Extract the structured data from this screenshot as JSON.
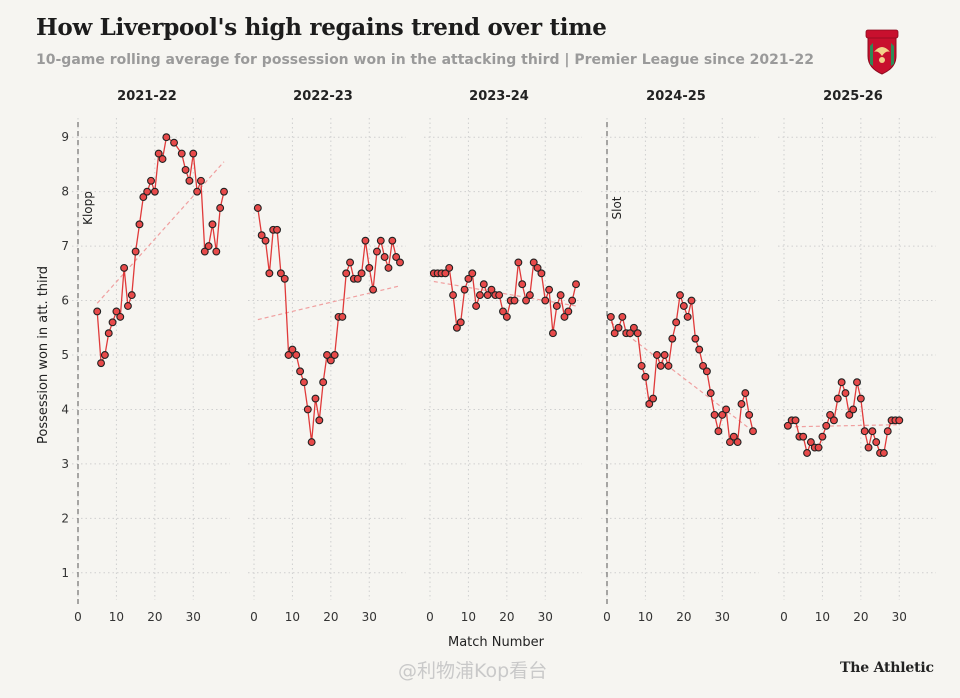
{
  "header": {
    "title": "How Liverpool's high regains trend over time",
    "subtitle": "10-game rolling average for possession won in the attacking third | Premier League since 2021-22"
  },
  "footer": {
    "brand": "The Athletic",
    "watermark": "@利物浦Kop看台"
  },
  "crest": {
    "text": "LIVERPOOL",
    "color": "#c8102e"
  },
  "colors": {
    "line": "#e03a3a",
    "marker_fill": "#e84a4a",
    "marker_edge": "#222222",
    "trend": "#f0a0a0",
    "grid": "#cfcfcf",
    "background": "#f6f5f1"
  },
  "chart_data": {
    "type": "line",
    "facets": [
      "2021-22",
      "2022-23",
      "2023-24",
      "2024-25",
      "2025-26"
    ],
    "xlabel": "Match Number",
    "ylabel": "Possession won in att. third",
    "ylim": [
      0.5,
      9.5
    ],
    "yticks": [
      1,
      2,
      3,
      4,
      5,
      6,
      7,
      8,
      9
    ],
    "xlim": [
      0,
      38
    ],
    "xticks": [
      0,
      10,
      20,
      30
    ],
    "grid": true,
    "series": [
      {
        "name": "2021-22",
        "annotation": "Klopp",
        "x": [
          5,
          6,
          7,
          8,
          9,
          10,
          11,
          12,
          13,
          14,
          15,
          16,
          17,
          18,
          19,
          20,
          21,
          22,
          23,
          25,
          27,
          28,
          29,
          30,
          31,
          32,
          33,
          34,
          35,
          36,
          37,
          38
        ],
        "y": [
          5.8,
          4.85,
          5.0,
          5.4,
          5.6,
          5.8,
          5.7,
          6.6,
          5.9,
          6.1,
          6.9,
          7.4,
          7.9,
          8.0,
          8.2,
          8.0,
          8.7,
          8.6,
          9.0,
          8.9,
          8.7,
          8.4,
          8.2,
          8.7,
          8.0,
          8.2,
          6.9,
          7.0,
          7.4,
          6.9,
          7.7,
          8.0
        ],
        "trend": [
          [
            5,
            5.95
          ],
          [
            38,
            8.55
          ]
        ]
      },
      {
        "name": "2022-23",
        "annotation": "",
        "x": [
          1,
          2,
          3,
          4,
          5,
          6,
          7,
          8,
          9,
          10,
          11,
          12,
          13,
          14,
          15,
          16,
          17,
          18,
          19,
          20,
          21,
          22,
          23,
          24,
          25,
          26,
          27,
          28,
          29,
          30,
          31,
          32,
          33,
          34,
          35,
          36,
          37,
          38
        ],
        "y": [
          7.7,
          7.2,
          7.1,
          6.5,
          7.3,
          7.3,
          6.5,
          6.4,
          5.0,
          5.1,
          5.0,
          4.7,
          4.5,
          4.0,
          3.4,
          4.2,
          3.8,
          4.5,
          5.0,
          4.9,
          5.0,
          5.7,
          5.7,
          6.5,
          6.7,
          6.4,
          6.4,
          6.5,
          7.1,
          6.6,
          6.2,
          6.9,
          7.1,
          6.8,
          6.6,
          7.1,
          6.8,
          6.7
        ],
        "trend": [
          [
            1,
            5.65
          ],
          [
            38,
            6.27
          ]
        ]
      },
      {
        "name": "2023-24",
        "annotation": "",
        "x": [
          1,
          2,
          3,
          4,
          5,
          6,
          7,
          8,
          9,
          10,
          11,
          12,
          13,
          14,
          15,
          16,
          17,
          18,
          19,
          20,
          21,
          22,
          23,
          24,
          25,
          26,
          27,
          28,
          29,
          30,
          31,
          32,
          33,
          34,
          35,
          36,
          37,
          38
        ],
        "y": [
          6.5,
          6.5,
          6.5,
          6.5,
          6.6,
          6.1,
          5.5,
          5.6,
          6.2,
          6.4,
          6.5,
          5.9,
          6.1,
          6.3,
          6.1,
          6.2,
          6.1,
          6.1,
          5.8,
          5.7,
          6.0,
          6.0,
          6.7,
          6.3,
          6.0,
          6.1,
          6.7,
          6.6,
          6.5,
          6.0,
          6.2,
          5.4,
          5.9,
          6.1,
          5.7,
          5.8,
          6.0,
          6.3
        ],
        "trend": [
          [
            1,
            6.35
          ],
          [
            38,
            5.9
          ]
        ]
      },
      {
        "name": "2024-25",
        "annotation": "Slot",
        "x": [
          1,
          2,
          3,
          4,
          5,
          6,
          7,
          8,
          9,
          10,
          11,
          12,
          13,
          14,
          15,
          16,
          17,
          18,
          19,
          20,
          21,
          22,
          23,
          24,
          25,
          26,
          27,
          28,
          29,
          30,
          31,
          32,
          33,
          34,
          35,
          36,
          37,
          38
        ],
        "y": [
          5.7,
          5.4,
          5.5,
          5.7,
          5.4,
          5.4,
          5.5,
          5.4,
          4.8,
          4.6,
          4.1,
          4.2,
          5.0,
          4.8,
          5.0,
          4.8,
          5.3,
          5.6,
          6.1,
          5.9,
          5.7,
          6.0,
          5.3,
          5.1,
          4.8,
          4.7,
          4.3,
          3.9,
          3.6,
          3.9,
          4.0,
          3.4,
          3.5,
          3.4,
          4.1,
          4.3,
          3.9,
          3.6
        ],
        "trend": [
          [
            1,
            5.6
          ],
          [
            38,
            3.6
          ]
        ]
      },
      {
        "name": "2025-26",
        "annotation": "",
        "x": [
          1,
          2,
          3,
          4,
          5,
          6,
          7,
          8,
          9,
          10,
          11,
          12,
          13,
          14,
          15,
          16,
          17,
          18,
          19,
          20,
          21,
          22,
          23,
          24,
          25,
          26,
          27,
          28,
          29,
          30
        ],
        "y": [
          3.7,
          3.8,
          3.8,
          3.5,
          3.5,
          3.2,
          3.4,
          3.3,
          3.3,
          3.5,
          3.7,
          3.9,
          3.8,
          4.2,
          4.5,
          4.3,
          3.9,
          4.0,
          4.5,
          4.2,
          3.6,
          3.3,
          3.6,
          3.4,
          3.2,
          3.2,
          3.6,
          3.8,
          3.8,
          3.8
        ],
        "trend": [
          [
            1,
            3.68
          ],
          [
            30,
            3.72
          ]
        ]
      }
    ]
  }
}
